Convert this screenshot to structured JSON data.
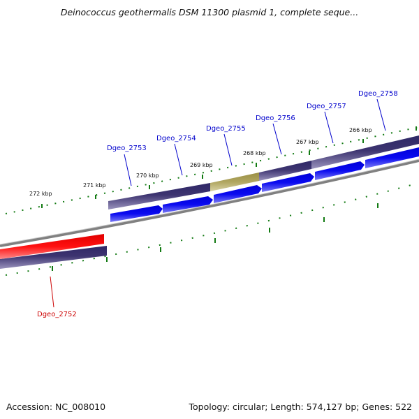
{
  "title": "Deinococcus geothermalis DSM 11300 plasmid 1, complete seque...",
  "footer": {
    "accession": "Accession: NC_008010",
    "summary": "Topology: circular; Length: 574,127 bp; Genes: 522"
  },
  "ruler_labels": [
    "272 kbp",
    "271 kbp",
    "270 kbp",
    "269 kbp",
    "268 kbp",
    "267 kbp",
    "266 kbp"
  ],
  "genes": [
    {
      "name": "Dgeo_2752",
      "color": "#cc0000",
      "strand": "reverse"
    },
    {
      "name": "Dgeo_2753",
      "color": "#0000cc",
      "strand": "forward"
    },
    {
      "name": "Dgeo_2754",
      "color": "#0000cc",
      "strand": "forward"
    },
    {
      "name": "Dgeo_2755",
      "color": "#0000cc",
      "strand": "forward"
    },
    {
      "name": "Dgeo_2756",
      "color": "#0000cc",
      "strand": "forward"
    },
    {
      "name": "Dgeo_2757",
      "color": "#0000cc",
      "strand": "forward"
    },
    {
      "name": "Dgeo_2758",
      "color": "#0000cc",
      "strand": "forward"
    }
  ],
  "colors": {
    "cds_forward": "#0a0af0",
    "cds_reverse": "#ff1010",
    "gene_track": "#3d3470",
    "highlight_track": "#b0a660",
    "backbone": "#808080",
    "tick": "#127a12"
  }
}
